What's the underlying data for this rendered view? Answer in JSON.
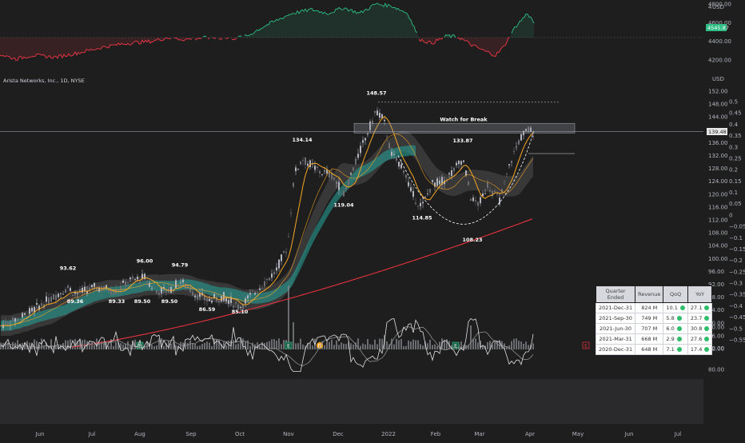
{
  "header": {
    "symbol_title": "Arista Networks, Inc., 1D, NYSE",
    "currency_top": "USD",
    "currency_main": "USD"
  },
  "colors": {
    "up": "#2ebd85",
    "down": "#f23645",
    "ma_fast": "#f5a623",
    "ma_slow": "#e6333d",
    "band": "#26a69a"
  },
  "chart_data": [
    {
      "type": "line",
      "name": "top-panel",
      "y_ticks": [
        4800.0,
        4600.0,
        4400.0,
        4200.0
      ],
      "last_value_label": "4545.87",
      "top_partial_label": "4",
      "baseline": 4440
    },
    {
      "type": "candlestick",
      "name": "price-panel",
      "y_ticks": [
        152.0,
        148.0,
        144.0,
        140.0,
        136.0,
        132.0,
        128.0,
        124.0,
        120.0,
        116.0,
        112.0,
        108.0,
        104.0,
        100.0,
        96.0,
        92.0,
        88.0,
        84.0,
        80.0,
        76.0,
        72.0
      ],
      "right_ticks": [
        0.5,
        0.45,
        0.4,
        0.35,
        0.3,
        0.25,
        0.2,
        0.15,
        0.1,
        0.05,
        0,
        -0.05,
        -0.1,
        -0.15,
        -0.2,
        -0.25,
        -0.3,
        -0.35,
        -0.4,
        -0.45,
        -0.5,
        -0.55
      ],
      "right_tick_labels": [
        "0.5",
        "0.45",
        "0.4",
        "0.35",
        "0.3",
        "0.25",
        "0.2",
        "0.15",
        "0.1",
        "0.05",
        "0",
        "−0.05",
        "−0.1",
        "−0.15",
        "−0.2",
        "−0.25",
        "−0.3",
        "−0.35",
        "−0.4",
        "−0.45",
        "−0.5",
        "−0.55"
      ],
      "last_price_label": "139.48",
      "annotations": [
        {
          "text": "93.62",
          "x": 85,
          "y": 96.0,
          "pos": "above"
        },
        {
          "text": "89.36",
          "x": 94,
          "y": 87.6,
          "pos": "below"
        },
        {
          "text": "89.33",
          "x": 146,
          "y": 87.6,
          "pos": "below"
        },
        {
          "text": "96.00",
          "x": 181,
          "y": 98.2,
          "pos": "above"
        },
        {
          "text": "89.50",
          "x": 178,
          "y": 87.6,
          "pos": "below"
        },
        {
          "text": "89.50",
          "x": 212,
          "y": 87.6,
          "pos": "below"
        },
        {
          "text": "94.79",
          "x": 225,
          "y": 97.0,
          "pos": "above"
        },
        {
          "text": "86.59",
          "x": 259,
          "y": 85.2,
          "pos": "below"
        },
        {
          "text": "85.10",
          "x": 300,
          "y": 84.4,
          "pos": "below"
        },
        {
          "text": "134.14",
          "x": 378,
          "y": 135.8,
          "pos": "above"
        },
        {
          "text": "119.04",
          "x": 430,
          "y": 117.6,
          "pos": "below"
        },
        {
          "text": "148.57",
          "x": 471,
          "y": 150.4,
          "pos": "above"
        },
        {
          "text": "114.85",
          "x": 528,
          "y": 113.6,
          "pos": "below"
        },
        {
          "text": "133.87",
          "x": 579,
          "y": 135.6,
          "pos": "above"
        },
        {
          "text": "108.23",
          "x": 591,
          "y": 106.8,
          "pos": "below"
        },
        {
          "text": "Watch for Break",
          "x": 580,
          "y": 142.2,
          "pos": "above"
        }
      ],
      "watch_zone": {
        "x_start": 443,
        "x_end": 719,
        "y_low": 139.0,
        "y_high": 142.0
      },
      "dashed_high": {
        "x_start": 473,
        "x_end": 700,
        "y": 148.57
      },
      "target_line": {
        "x_start": 661,
        "x_end": 719,
        "y": 132.6
      }
    },
    {
      "type": "line",
      "name": "rsi-panel",
      "y_ticks": [
        80.0,
        60.0,
        40.0
      ]
    }
  ],
  "earnings_markers": [
    {
      "x": 175,
      "label": "E"
    },
    {
      "x": 361,
      "label": "E"
    },
    {
      "x": 400,
      "label": "D"
    },
    {
      "x": 570,
      "label": "E"
    },
    {
      "x": 733,
      "label": "E"
    }
  ],
  "x_axis": {
    "labels": [
      {
        "text": "Jun",
        "x": 50
      },
      {
        "text": "Jul",
        "x": 115
      },
      {
        "text": "Aug",
        "x": 175
      },
      {
        "text": "Sep",
        "x": 239
      },
      {
        "text": "Oct",
        "x": 300
      },
      {
        "text": "Nov",
        "x": 361
      },
      {
        "text": "Dec",
        "x": 423
      },
      {
        "text": "2022",
        "x": 486
      },
      {
        "text": "Feb",
        "x": 545
      },
      {
        "text": "Mar",
        "x": 600
      },
      {
        "text": "Apr",
        "x": 663
      },
      {
        "text": "May",
        "x": 723
      },
      {
        "text": "Jun",
        "x": 787
      },
      {
        "text": "Jul",
        "x": 848
      }
    ]
  },
  "table": {
    "headers": [
      "Quarter Ended",
      "Revenue",
      "QoQ",
      "YoY"
    ],
    "rows": [
      [
        "2021-Dec-31",
        "824 M",
        "10.1",
        "27.1"
      ],
      [
        "2021-Sep-30",
        "749 M",
        "5.8",
        "23.7"
      ],
      [
        "2021-Jun-30",
        "707 M",
        "6.0",
        "30.8"
      ],
      [
        "2021-Mar-31",
        "668 M",
        "2.9",
        "27.6"
      ],
      [
        "2020-Dec-31",
        "648 M",
        "7.1",
        "17.4"
      ]
    ]
  }
}
